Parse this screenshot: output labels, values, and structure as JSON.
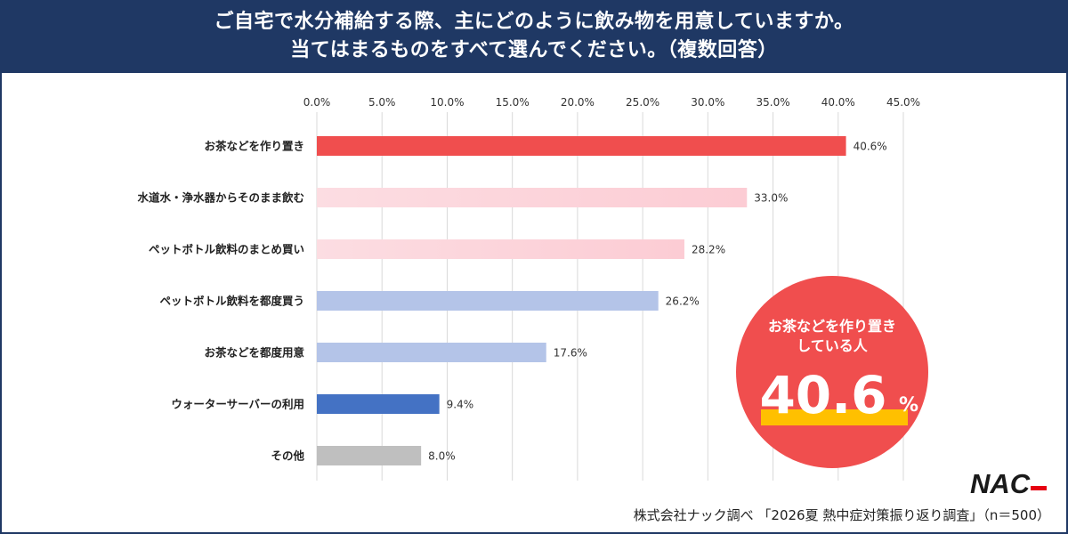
{
  "header": {
    "title_line1": "ご自宅で水分補給する際、主にどのように飲み物を用意していますか。",
    "title_line2": "当てはまるものをすべて選んでください。（複数回答）"
  },
  "chart_data": {
    "type": "bar",
    "orientation": "horizontal",
    "categories": [
      "お茶などを作り置き",
      "水道水・浄水器からそのまま飲む",
      "ペットボトル飲料のまとめ買い",
      "ペットボトル飲料を都度買う",
      "お茶などを都度用意",
      "ウォーターサーバーの利用",
      "その他"
    ],
    "values": [
      40.6,
      33.0,
      28.2,
      26.2,
      17.6,
      9.4,
      8.0
    ],
    "value_labels": [
      "40.6%",
      "33.0%",
      "28.2%",
      "26.2%",
      "17.6%",
      "9.4%",
      "8.0%"
    ],
    "bar_colors": [
      [
        "#f04e4e",
        "#f04e4e"
      ],
      [
        "#fcdde2",
        "#fcccd4"
      ],
      [
        "#fcdde2",
        "#fcccd4"
      ],
      [
        "#b4c4e8",
        "#b4c4e8"
      ],
      [
        "#b4c4e8",
        "#b4c4e8"
      ],
      [
        "#4472c4",
        "#4472c4"
      ],
      [
        "#bfbfbf",
        "#bfbfbf"
      ]
    ],
    "xlim": [
      0,
      45
    ],
    "xticks": [
      0,
      5,
      10,
      15,
      20,
      25,
      30,
      35,
      40,
      45
    ],
    "xtick_labels": [
      "0.0%",
      "5.0%",
      "10.0%",
      "15.0%",
      "20.0%",
      "25.0%",
      "30.0%",
      "35.0%",
      "40.0%",
      "45.0%"
    ],
    "grid": true,
    "axis_position": "top"
  },
  "callout": {
    "line1": "お茶などを作り置き",
    "line2": "している人",
    "value": "40.6",
    "unit": "%",
    "circle_color": "#f04e4e",
    "highlight_color": "#ffc000"
  },
  "logo": {
    "text": "NAC",
    "color": "#1a1a1a",
    "accent": "#e60012"
  },
  "source": "株式会社ナック調べ 「2026夏 熱中症対策振り返り調査」（n＝500）"
}
